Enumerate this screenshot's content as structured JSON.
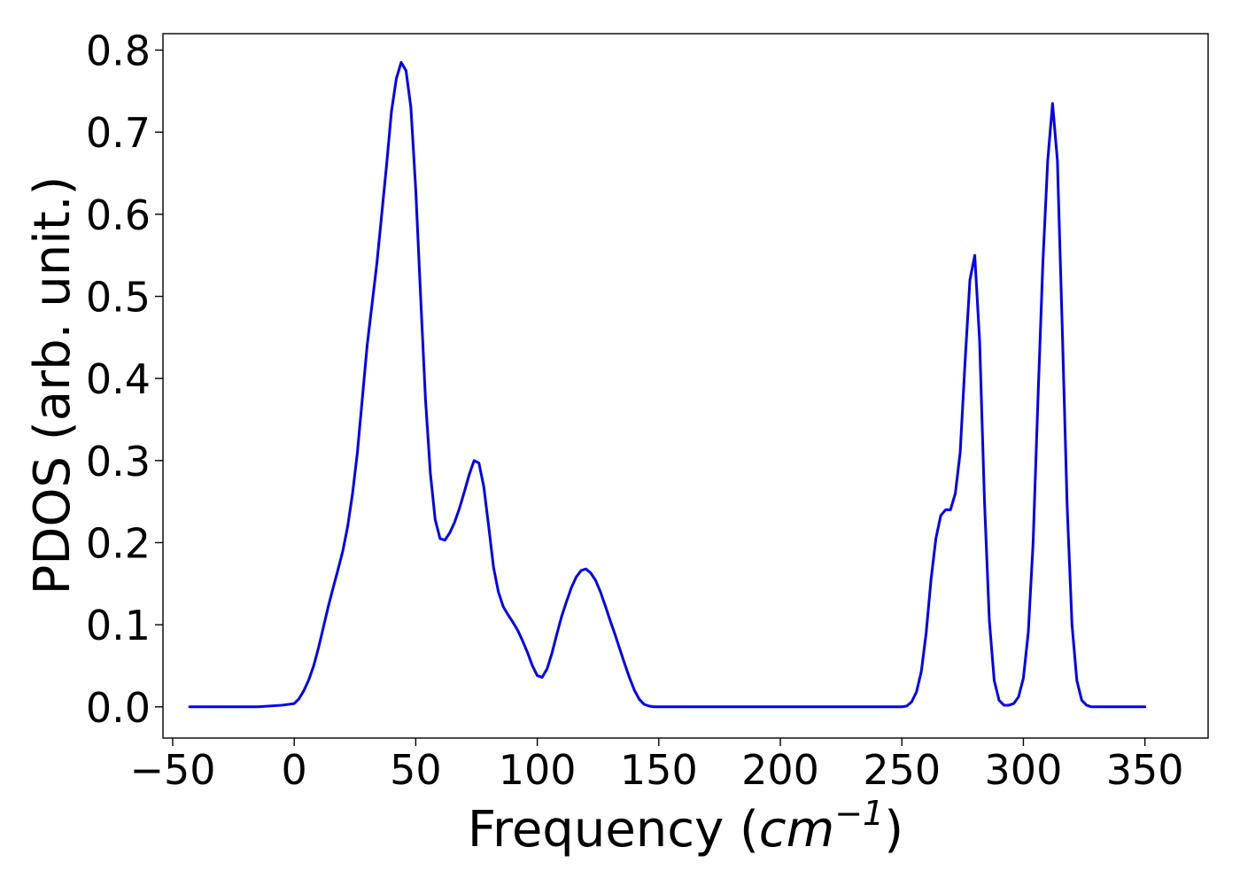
{
  "chart_data": {
    "type": "line",
    "title": "",
    "xlabel": {
      "prefix": "Frequency (",
      "unit_base": "cm",
      "unit_exponent": "−1",
      "suffix": ")"
    },
    "ylabel": "PDOS (arb. unit.)",
    "xlim": [
      -54,
      376
    ],
    "ylim": [
      -0.038,
      0.82
    ],
    "xticks": [
      -50,
      0,
      50,
      100,
      150,
      200,
      250,
      300,
      350
    ],
    "xtick_labels": [
      "−50",
      "0",
      "50",
      "100",
      "150",
      "200",
      "250",
      "300",
      "350"
    ],
    "yticks": [
      0.0,
      0.1,
      0.2,
      0.3,
      0.4,
      0.5,
      0.6,
      0.7,
      0.8
    ],
    "ytick_labels": [
      "0.0",
      "0.1",
      "0.2",
      "0.3",
      "0.4",
      "0.5",
      "0.6",
      "0.7",
      "0.8"
    ],
    "grid": false,
    "legend": "none",
    "series": [
      {
        "color": "#0000ff",
        "x": [
          -43,
          -15,
          -5,
          0,
          2,
          4,
          6,
          8,
          10,
          12,
          14,
          16,
          18,
          20,
          22,
          24,
          26,
          28,
          30,
          32,
          34,
          36,
          38,
          40,
          42,
          44,
          46,
          48,
          50,
          52,
          54,
          56,
          58,
          60,
          62,
          64,
          66,
          68,
          70,
          72,
          74,
          76,
          78,
          80,
          82,
          84,
          86,
          88,
          90,
          92,
          94,
          96,
          98,
          100,
          102,
          104,
          106,
          108,
          110,
          112,
          114,
          116,
          118,
          120,
          122,
          124,
          126,
          128,
          130,
          132,
          134,
          136,
          138,
          140,
          142,
          144,
          146,
          148,
          150,
          200,
          250,
          252,
          254,
          256,
          258,
          260,
          262,
          264,
          266,
          268,
          270,
          272,
          274,
          276,
          278,
          280,
          282,
          284,
          286,
          288,
          290,
          292,
          294,
          296,
          298,
          300,
          302,
          304,
          306,
          308,
          310,
          312,
          314,
          316,
          318,
          320,
          322,
          324,
          326,
          328,
          330,
          350
        ],
        "y": [
          0.0,
          0.0,
          0.002,
          0.004,
          0.01,
          0.02,
          0.033,
          0.05,
          0.072,
          0.097,
          0.122,
          0.145,
          0.167,
          0.19,
          0.22,
          0.26,
          0.31,
          0.375,
          0.44,
          0.49,
          0.54,
          0.6,
          0.66,
          0.725,
          0.765,
          0.785,
          0.775,
          0.73,
          0.63,
          0.5,
          0.375,
          0.285,
          0.228,
          0.205,
          0.203,
          0.212,
          0.225,
          0.242,
          0.262,
          0.283,
          0.3,
          0.297,
          0.268,
          0.22,
          0.17,
          0.14,
          0.122,
          0.112,
          0.103,
          0.093,
          0.08,
          0.066,
          0.05,
          0.038,
          0.036,
          0.046,
          0.065,
          0.088,
          0.11,
          0.128,
          0.145,
          0.158,
          0.166,
          0.168,
          0.163,
          0.154,
          0.14,
          0.123,
          0.105,
          0.088,
          0.07,
          0.052,
          0.035,
          0.02,
          0.009,
          0.003,
          0.001,
          0.0,
          0.0,
          0.0,
          0.0,
          0.001,
          0.006,
          0.018,
          0.043,
          0.09,
          0.155,
          0.205,
          0.233,
          0.24,
          0.24,
          0.26,
          0.31,
          0.42,
          0.52,
          0.55,
          0.445,
          0.25,
          0.105,
          0.032,
          0.008,
          0.002,
          0.002,
          0.004,
          0.012,
          0.035,
          0.09,
          0.2,
          0.375,
          0.54,
          0.665,
          0.735,
          0.665,
          0.46,
          0.245,
          0.1,
          0.032,
          0.008,
          0.002,
          0.0,
          0.0,
          0.0
        ]
      }
    ]
  }
}
